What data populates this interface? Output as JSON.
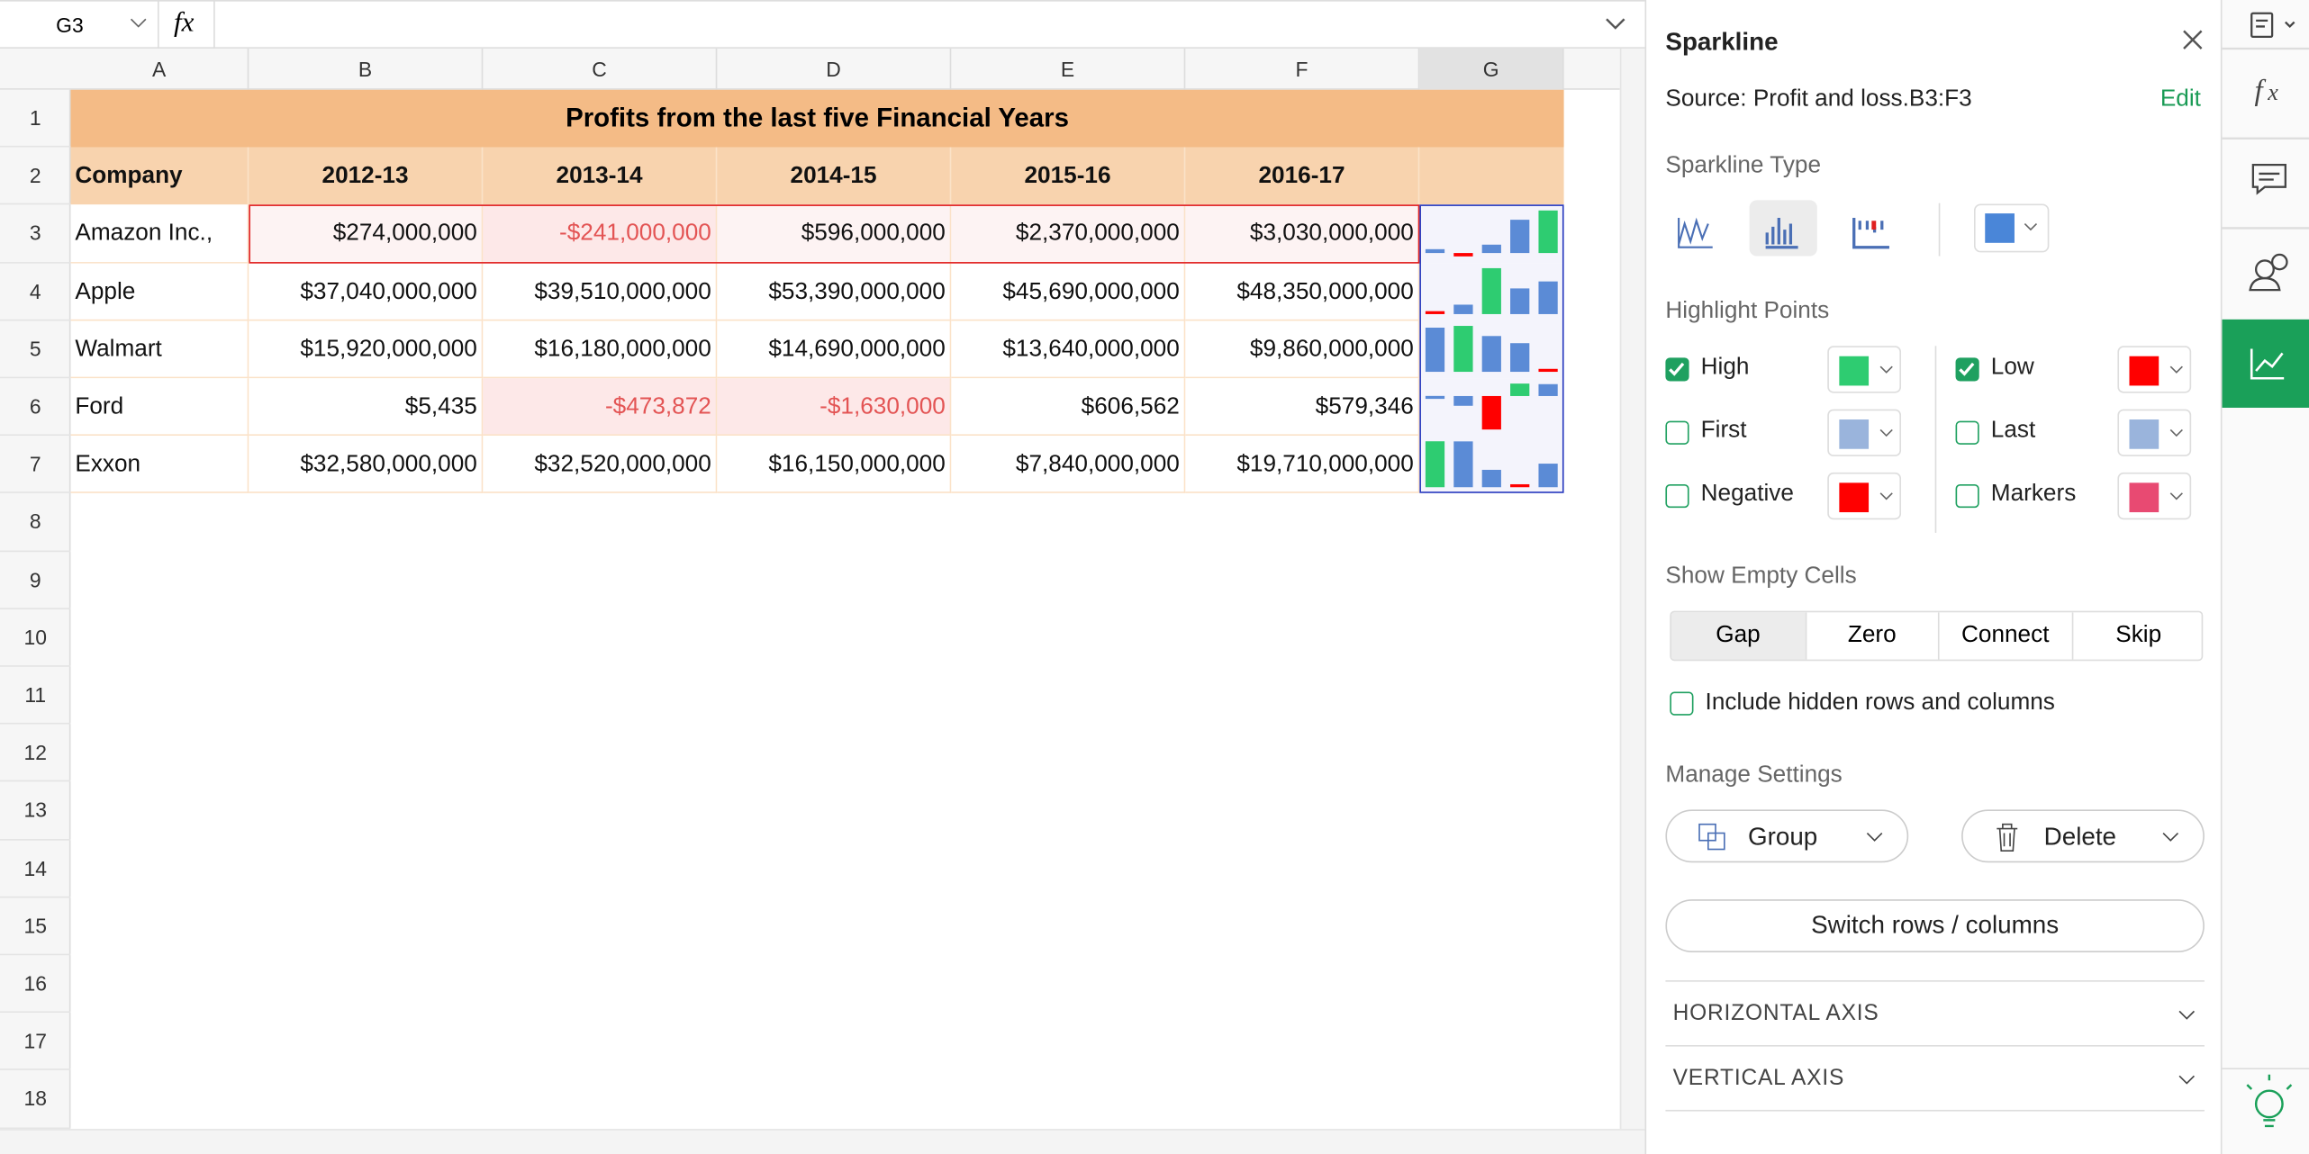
{
  "formula_bar": {
    "cell_ref": "G3",
    "fx": "fx"
  },
  "columns": [
    "A",
    "B",
    "C",
    "D",
    "E",
    "F",
    "G"
  ],
  "row_numbers": [
    1,
    2,
    3,
    4,
    5,
    6,
    7,
    8,
    9,
    10,
    11,
    12,
    13,
    14,
    15,
    16,
    17,
    18
  ],
  "sheet": {
    "title": "Profits from the last five Financial Years",
    "header": [
      "Company",
      "2012-13",
      "2013-14",
      "2014-15",
      "2015-16",
      "2016-17"
    ],
    "rows": [
      [
        "Amazon Inc.,",
        "$274,000,000",
        "-$241,000,000",
        "$596,000,000",
        "$2,370,000,000",
        "$3,030,000,000"
      ],
      [
        "Apple",
        "$37,040,000,000",
        "$39,510,000,000",
        "$53,390,000,000",
        "$45,690,000,000",
        "$48,350,000,000"
      ],
      [
        "Walmart",
        "$15,920,000,000",
        "$16,180,000,000",
        "$14,690,000,000",
        "$13,640,000,000",
        "$9,860,000,000"
      ],
      [
        "Ford",
        "$5,435",
        "-$473,872",
        "-$1,630,000",
        "$606,562",
        "$579,346"
      ],
      [
        "Exxon",
        "$32,580,000,000",
        "$32,520,000,000",
        "$16,150,000,000",
        "$7,840,000,000",
        "$19,710,000,000"
      ]
    ],
    "sparkline_colors": {
      "bar": "#5b8bd6",
      "high": "#2ecc71",
      "low": "#ff0000"
    }
  },
  "panel": {
    "title": "Sparkline",
    "source": "Source: Profit and loss.B3:F3",
    "edit": "Edit",
    "type_label": "Sparkline Type",
    "type_color": "#4a86d8",
    "highlight_label": "Highlight Points",
    "highlight_options": [
      {
        "label": "High",
        "checked": true,
        "color": "#2ecc71"
      },
      {
        "label": "Low",
        "checked": true,
        "color": "#ff0000"
      },
      {
        "label": "First",
        "checked": false,
        "color": "#9ab4dc"
      },
      {
        "label": "Last",
        "checked": false,
        "color": "#9ab4dc"
      },
      {
        "label": "Negative",
        "checked": false,
        "color": "#ff0000"
      },
      {
        "label": "Markers",
        "checked": false,
        "color": "#e84a72"
      }
    ],
    "empty_cells_label": "Show Empty Cells",
    "empty_cells_options": [
      "Gap",
      "Zero",
      "Connect",
      "Skip"
    ],
    "empty_cells_selected": 0,
    "include_hidden": "Include hidden rows and columns",
    "manage_label": "Manage Settings",
    "group": "Group",
    "delete": "Delete",
    "switch": "Switch rows / columns",
    "sections": [
      "HORIZONTAL AXIS",
      "VERTICAL AXIS"
    ]
  }
}
